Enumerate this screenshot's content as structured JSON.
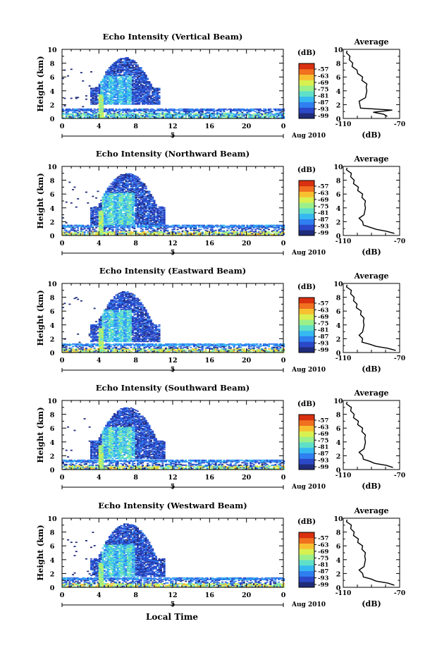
{
  "x_axis_label": "Local Time",
  "date_label": "Aug 2010",
  "date_marker": "5",
  "colorbar_unit": "(dB)",
  "colorbar_ticks": [
    "-57",
    "-63",
    "-69",
    "-75",
    "-81",
    "-87",
    "-93",
    "-99"
  ],
  "x_ticks": [
    "0",
    "4",
    "8",
    "12",
    "16",
    "20",
    "0"
  ],
  "y_ticks": [
    "0",
    "2",
    "4",
    "6",
    "8",
    "10"
  ],
  "ylabel": "Height (km)",
  "profile_title": "Average",
  "profile_xticks": [
    "-110",
    "-70"
  ],
  "profile_xlabel": "(dB)",
  "colormap": [
    "#202c7a",
    "#2b48c8",
    "#2f7ff0",
    "#36b8f0",
    "#5fe0c8",
    "#9cf08a",
    "#d8f050",
    "#f8c030",
    "#f07020",
    "#d83010"
  ],
  "chart_data": [
    {
      "type": "heatmap",
      "title": "Echo Intensity (Vertical Beam)",
      "xlabel": "",
      "ylabel": "Height (km)",
      "xlim": [
        0,
        24
      ],
      "ylim": [
        0,
        10
      ],
      "clim": [
        -99,
        -57
      ],
      "x_unit": "hours (local time, 5 Aug 2010)",
      "cloud": {
        "base_km": 2.0,
        "top_km": 8.8,
        "start_h": 3.0,
        "end_h": 10.5,
        "core_start_h": 4.0,
        "core_end_h": 7.5,
        "core_db": -87
      },
      "boundary_layer": {
        "height_km": 1.4,
        "db": -90
      },
      "surface_layer": {
        "height_km": 0.8,
        "db": -81
      },
      "profile": {
        "title": "Average",
        "xlim": [
          -110,
          -70
        ],
        "ylim": [
          0,
          10
        ],
        "heights": [
          0.3,
          0.6,
          0.9,
          1.2,
          1.5,
          2.0,
          2.5,
          3.0,
          3.5,
          4.0,
          4.5,
          5.0,
          5.5,
          6.0,
          6.5,
          7.0,
          7.5,
          8.0,
          8.5,
          9.0,
          9.5,
          9.8
        ],
        "values": [
          -78,
          -82,
          -88,
          -76,
          -97,
          -99,
          -98,
          -95,
          -93,
          -94,
          -93,
          -94,
          -96,
          -97,
          -99,
          -101,
          -103,
          -104,
          -105,
          -106,
          -107,
          -108
        ]
      }
    },
    {
      "type": "heatmap",
      "title": "Echo Intensity (Northward Beam)",
      "xlabel": "",
      "ylabel": "Height (km)",
      "xlim": [
        0,
        24
      ],
      "ylim": [
        0,
        10
      ],
      "clim": [
        -99,
        -57
      ],
      "x_unit": "hours (local time, 5 Aug 2010)",
      "cloud": {
        "base_km": 1.5,
        "top_km": 9.0,
        "start_h": 3.0,
        "end_h": 11.0,
        "core_start_h": 4.2,
        "core_end_h": 7.8,
        "core_db": -84
      },
      "boundary_layer": {
        "height_km": 1.5,
        "db": -88
      },
      "surface_layer": {
        "height_km": 0.6,
        "db": -72
      },
      "profile": {
        "title": "Average",
        "xlim": [
          -110,
          -70
        ],
        "ylim": [
          0,
          10
        ],
        "heights": [
          0.3,
          0.6,
          0.9,
          1.2,
          1.5,
          2.0,
          2.5,
          3.0,
          3.5,
          4.0,
          4.5,
          5.0,
          5.5,
          6.0,
          6.5,
          7.0,
          7.5,
          8.0,
          8.5,
          9.0,
          9.5,
          9.8
        ],
        "values": [
          -73,
          -80,
          -86,
          -92,
          -95,
          -97,
          -98,
          -96,
          -94,
          -95,
          -94,
          -95,
          -96,
          -97,
          -99,
          -100,
          -102,
          -103,
          -104,
          -105,
          -107,
          -108
        ]
      }
    },
    {
      "type": "heatmap",
      "title": "Echo Intensity (Eastward Beam)",
      "xlabel": "",
      "ylabel": "Height (km)",
      "xlim": [
        0,
        24
      ],
      "ylim": [
        0,
        10
      ],
      "clim": [
        -99,
        -57
      ],
      "x_unit": "hours (local time, 5 Aug 2010)",
      "cloud": {
        "base_km": 1.5,
        "top_km": 8.8,
        "start_h": 3.0,
        "end_h": 10.5,
        "core_start_h": 4.2,
        "core_end_h": 7.5,
        "core_db": -85
      },
      "boundary_layer": {
        "height_km": 1.3,
        "db": -87
      },
      "surface_layer": {
        "height_km": 0.6,
        "db": -73
      },
      "profile": {
        "title": "Average",
        "xlim": [
          -110,
          -70
        ],
        "ylim": [
          0,
          10
        ],
        "heights": [
          0.3,
          0.6,
          0.9,
          1.2,
          1.5,
          2.0,
          2.5,
          3.0,
          3.5,
          4.0,
          4.5,
          5.0,
          5.5,
          6.0,
          6.5,
          7.0,
          7.5,
          8.0,
          8.5,
          9.0,
          9.5,
          9.8
        ],
        "values": [
          -72,
          -79,
          -86,
          -92,
          -96,
          -97,
          -98,
          -97,
          -95,
          -96,
          -95,
          -96,
          -97,
          -98,
          -100,
          -101,
          -102,
          -103,
          -104,
          -105,
          -107,
          -108
        ]
      }
    },
    {
      "type": "heatmap",
      "title": "Echo Intensity (Southward Beam)",
      "xlabel": "",
      "ylabel": "Height (km)",
      "xlim": [
        0,
        24
      ],
      "ylim": [
        0,
        10
      ],
      "clim": [
        -99,
        -57
      ],
      "x_unit": "hours (local time, 5 Aug 2010)",
      "cloud": {
        "base_km": 1.5,
        "top_km": 9.0,
        "start_h": 3.0,
        "end_h": 11.0,
        "core_start_h": 4.2,
        "core_end_h": 7.8,
        "core_db": -84
      },
      "boundary_layer": {
        "height_km": 1.4,
        "db": -88
      },
      "surface_layer": {
        "height_km": 0.6,
        "db": -74
      },
      "profile": {
        "title": "Average",
        "xlim": [
          -110,
          -70
        ],
        "ylim": [
          0,
          10
        ],
        "heights": [
          0.3,
          0.6,
          0.9,
          1.2,
          1.5,
          2.0,
          2.5,
          3.0,
          3.5,
          4.0,
          4.5,
          5.0,
          5.5,
          6.0,
          6.5,
          7.0,
          7.5,
          8.0,
          8.5,
          9.0,
          9.5,
          9.8
        ],
        "values": [
          -74,
          -80,
          -87,
          -92,
          -95,
          -97,
          -98,
          -96,
          -94,
          -95,
          -94,
          -95,
          -96,
          -97,
          -99,
          -100,
          -102,
          -103,
          -104,
          -105,
          -107,
          -108
        ]
      }
    },
    {
      "type": "heatmap",
      "title": "Echo Intensity (Westward Beam)",
      "xlabel": "Local Time",
      "ylabel": "Height (km)",
      "xlim": [
        0,
        24
      ],
      "ylim": [
        0,
        10
      ],
      "clim": [
        -99,
        -57
      ],
      "x_unit": "hours (local time, 5 Aug 2010)",
      "cloud": {
        "base_km": 1.5,
        "top_km": 9.2,
        "start_h": 3.0,
        "end_h": 11.0,
        "core_start_h": 4.2,
        "core_end_h": 7.8,
        "core_db": -85
      },
      "boundary_layer": {
        "height_km": 1.4,
        "db": -88
      },
      "surface_layer": {
        "height_km": 0.6,
        "db": -73
      },
      "profile": {
        "title": "Average",
        "xlim": [
          -110,
          -70
        ],
        "ylim": [
          0,
          10
        ],
        "heights": [
          0.3,
          0.6,
          0.9,
          1.2,
          1.5,
          2.0,
          2.5,
          3.0,
          3.5,
          4.0,
          4.5,
          5.0,
          5.5,
          6.0,
          6.5,
          7.0,
          7.5,
          8.0,
          8.5,
          9.0,
          9.5,
          9.8
        ],
        "values": [
          -73,
          -79,
          -86,
          -91,
          -95,
          -97,
          -98,
          -96,
          -94,
          -95,
          -94,
          -95,
          -96,
          -97,
          -99,
          -100,
          -102,
          -103,
          -104,
          -105,
          -107,
          -108
        ]
      }
    }
  ]
}
